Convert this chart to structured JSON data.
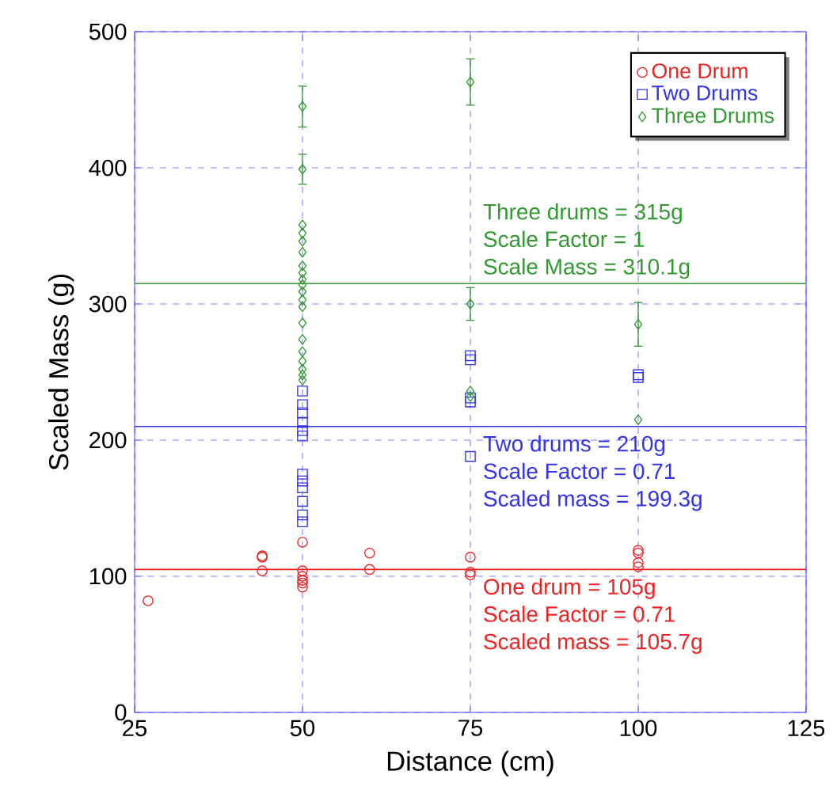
{
  "chart_data": {
    "type": "scatter",
    "xlabel": "Distance (cm)",
    "ylabel": "Scaled Mass (g)",
    "xlim": [
      25,
      125
    ],
    "xticks": [
      25,
      50,
      75,
      100,
      125
    ],
    "ylim": [
      0,
      500
    ],
    "yticks": [
      0,
      100,
      200,
      300,
      400,
      500
    ],
    "grid": true,
    "legend": "top right",
    "series": [
      {
        "name": "One Drum",
        "color": "#ee2222",
        "marker": "circle",
        "x": [
          27,
          44,
          44,
          44,
          50,
          50,
          50,
          50,
          50,
          50,
          60,
          60,
          75,
          75,
          75,
          100,
          100,
          100,
          100
        ],
        "values": [
          82,
          115,
          114,
          104,
          125,
          104,
          100,
          97,
          95,
          92,
          117,
          105,
          114,
          103,
          101,
          119,
          117,
          110,
          107
        ]
      },
      {
        "name": "Two Drums",
        "color": "#3333ee",
        "marker": "square",
        "x": [
          50,
          50,
          50,
          50,
          50,
          50,
          50,
          50,
          50,
          50,
          50,
          50,
          75,
          75,
          75,
          75,
          75,
          100,
          100
        ],
        "values": [
          236,
          226,
          220,
          213,
          207,
          203,
          175,
          170,
          165,
          155,
          145,
          140,
          262,
          259,
          231,
          228,
          188,
          248,
          246
        ]
      },
      {
        "name": "Three Drums",
        "color": "#339933",
        "marker": "diamond",
        "x": [
          50,
          50,
          50,
          50,
          50,
          50,
          50,
          50,
          50,
          50,
          50,
          50,
          50,
          50,
          50,
          50,
          50,
          50,
          50,
          50,
          75,
          75,
          75,
          75,
          100,
          100
        ],
        "values": [
          445,
          399,
          358,
          352,
          346,
          338,
          328,
          323,
          318,
          314,
          309,
          303,
          298,
          286,
          274,
          265,
          258,
          252,
          248,
          244,
          463,
          300,
          236,
          232,
          285,
          215
        ],
        "errors": [
          15,
          11,
          null,
          null,
          null,
          null,
          null,
          null,
          null,
          null,
          null,
          null,
          null,
          null,
          null,
          null,
          null,
          null,
          null,
          null,
          17,
          12,
          null,
          null,
          16,
          null
        ]
      }
    ],
    "ref_lines": [
      {
        "axis": "y",
        "value": 315,
        "color": "#339933"
      },
      {
        "axis": "y",
        "value": 210,
        "color": "#3333ee"
      },
      {
        "axis": "y",
        "value": 105,
        "color": "#ee2222"
      }
    ],
    "annotations": [
      "Three drums = 315g",
      "Scale Factor = 1",
      "Scale Mass = 310.1g",
      "Two drums = 210g",
      "Scale Factor = 0.71",
      "Scaled mass = 199.3g",
      "One drum = 105g",
      "Scale Factor = 0.71",
      "Scaled mass = 105.7g"
    ]
  }
}
